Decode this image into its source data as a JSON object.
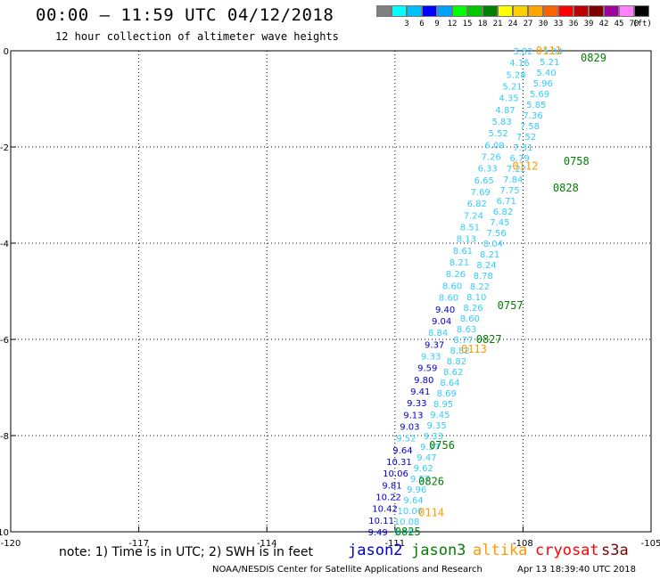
{
  "header": {
    "title": "00:00 – 11:59 UTC 04/12/2018",
    "subtitle": "12 hour collection of altimeter wave heights"
  },
  "colorbar": {
    "unit": "(ft)",
    "cells": [
      {
        "label": "",
        "color": "#808080"
      },
      {
        "label": "3",
        "color": "#00ffff"
      },
      {
        "label": "6",
        "color": "#00bfff"
      },
      {
        "label": "9",
        "color": "#0000ff"
      },
      {
        "label": "12",
        "color": "#00a0ff"
      },
      {
        "label": "15",
        "color": "#00ff00"
      },
      {
        "label": "18",
        "color": "#00c800"
      },
      {
        "label": "21",
        "color": "#008000"
      },
      {
        "label": "24",
        "color": "#ffff00"
      },
      {
        "label": "27",
        "color": "#ffd000"
      },
      {
        "label": "30",
        "color": "#ffa500"
      },
      {
        "label": "33",
        "color": "#ff6000"
      },
      {
        "label": "36",
        "color": "#ff0000"
      },
      {
        "label": "39",
        "color": "#c00000"
      },
      {
        "label": "42",
        "color": "#800000"
      },
      {
        "label": "45",
        "color": "#a000a0"
      },
      {
        "label": "70",
        "color": "#ff80ff"
      },
      {
        "label": "",
        "color": "#000000"
      }
    ]
  },
  "chart_data": {
    "type": "scatter",
    "title": "00:00 – 11:59 UTC 04/12/2018",
    "subtitle": "12 hour collection of altimeter wave heights",
    "xlim": [
      -120,
      -105
    ],
    "ylim": [
      -10,
      0
    ],
    "x_ticks": [
      {
        "v": -120,
        "label": "-120"
      },
      {
        "v": -117,
        "label": "-117"
      },
      {
        "v": -114,
        "label": "-114"
      },
      {
        "v": -111,
        "label": "-111"
      },
      {
        "v": -108,
        "label": "-108"
      },
      {
        "v": -105,
        "label": "-105"
      }
    ],
    "y_ticks": [
      {
        "v": 0,
        "label": "0"
      },
      {
        "v": -2,
        "label": "-2"
      },
      {
        "v": -4,
        "label": "-4"
      },
      {
        "v": -6,
        "label": "-6"
      },
      {
        "v": -8,
        "label": "-8"
      },
      {
        "v": -10,
        "label": "-10"
      }
    ],
    "grid": true,
    "grid_style": "dotted",
    "track_a": {
      "start": [
        -108.0,
        0.0
      ],
      "end": [
        -111.4,
        -10.0
      ],
      "values": [
        3.82,
        4.16,
        5.28,
        5.21,
        4.35,
        4.87,
        5.83,
        5.52,
        6.09,
        7.26,
        6.33,
        6.65,
        7.69,
        6.82,
        7.24,
        8.51,
        8.13,
        8.61,
        8.21,
        8.26,
        8.6,
        8.6,
        9.4,
        9.04,
        8.84,
        9.37,
        9.33,
        9.59,
        9.8,
        9.41,
        9.33,
        9.13,
        9.03,
        9.52,
        9.64,
        10.31,
        10.06,
        9.81,
        10.22,
        10.42,
        10.11,
        9.49
      ],
      "colors": [
        "#33ccff",
        "#33ccff",
        "#33ccff",
        "#33ccff",
        "#33ccff",
        "#33ccff",
        "#33ccff",
        "#33ccff",
        "#33ccff",
        "#33ccff",
        "#33ccff",
        "#33ccff",
        "#33ccff",
        "#33ccff",
        "#33ccff",
        "#33ccff",
        "#33ccff",
        "#33ccff",
        "#33ccff",
        "#33ccff",
        "#33ccff",
        "#33ccff",
        "#0000cc",
        "#0000cc",
        "#33ccff",
        "#0000cc",
        "#33ccff",
        "#0000cc",
        "#0000cc",
        "#0000cc",
        "#0000cc",
        "#0000cc",
        "#0000cc",
        "#33ccff",
        "#0000cc",
        "#0000cc",
        "#0000cc",
        "#0000cc",
        "#0000cc",
        "#0000cc",
        "#0000cc",
        "#0000cc"
      ]
    },
    "track_b": {
      "start": [
        -107.3,
        0.0
      ],
      "end": [
        -110.8,
        -10.0
      ],
      "values": [
        5.04,
        5.21,
        5.4,
        5.96,
        5.69,
        5.85,
        7.36,
        7.58,
        7.52,
        7.31,
        6.79,
        7.22,
        7.84,
        7.75,
        6.71,
        6.82,
        7.45,
        7.56,
        8.04,
        8.21,
        8.24,
        8.78,
        8.22,
        8.1,
        8.26,
        8.6,
        8.63,
        8.77,
        8.82,
        8.82,
        8.62,
        8.64,
        8.69,
        8.95,
        9.45,
        9.35,
        9.33,
        9.37,
        9.47,
        9.62,
        9.57,
        9.96,
        9.64,
        10.06,
        10.08,
        9.99
      ],
      "colors": "#33ccff"
    },
    "time_labels": [
      {
        "text": "0111",
        "x": -107.7,
        "y": 0.0,
        "series": "altika",
        "color": "#ff9900"
      },
      {
        "text": "0829",
        "x": -106.65,
        "y": -0.15,
        "series": "jason3",
        "color": "#008000"
      },
      {
        "text": "0112",
        "x": -108.25,
        "y": -2.4,
        "series": "altika",
        "color": "#ff9900"
      },
      {
        "text": "0758",
        "x": -107.05,
        "y": -2.3,
        "series": "jason3",
        "color": "#008000"
      },
      {
        "text": "0828",
        "x": -107.3,
        "y": -2.85,
        "series": "jason3",
        "color": "#008000"
      },
      {
        "text": "0757",
        "x": -108.6,
        "y": -5.3,
        "series": "jason3",
        "color": "#008000"
      },
      {
        "text": "0827",
        "x": -109.1,
        "y": -6.0,
        "series": "jason3",
        "color": "#008000"
      },
      {
        "text": "0113",
        "x": -109.45,
        "y": -6.2,
        "series": "altika",
        "color": "#ff9900"
      },
      {
        "text": "0756",
        "x": -110.2,
        "y": -8.2,
        "series": "jason3",
        "color": "#008000"
      },
      {
        "text": "0826",
        "x": -110.45,
        "y": -8.95,
        "series": "jason3",
        "color": "#008000"
      },
      {
        "text": "0114",
        "x": -110.45,
        "y": -9.6,
        "series": "altika",
        "color": "#ff9900"
      },
      {
        "text": "0825",
        "x": -111.0,
        "y": -10.0,
        "series": "jason3",
        "color": "#008000"
      }
    ]
  },
  "note": {
    "text": "note: 1) Time is in UTC; 2) SWH is in feet"
  },
  "satellites": [
    {
      "name": "jason2",
      "color": "#0000cc"
    },
    {
      "name": "jason3",
      "color": "#008000"
    },
    {
      "name": "altika",
      "color": "#ff9900"
    },
    {
      "name": "cryosat",
      "color": "#ff0000"
    },
    {
      "name": "s3a",
      "color": "#800000"
    }
  ],
  "footer": {
    "credit": "NOAA/NESDIS Center for Satellite Applications and Research",
    "timestamp": "Apr 13 18:39:40 UTC 2018"
  }
}
